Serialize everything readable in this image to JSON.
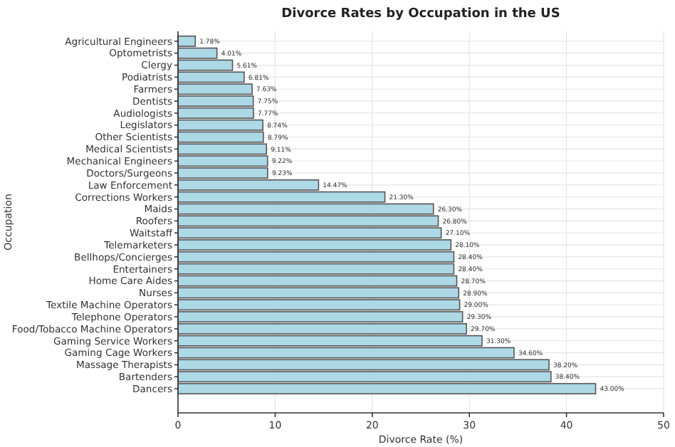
{
  "chart_data": {
    "type": "bar",
    "orientation": "horizontal",
    "title": "Divorce Rates by Occupation in the US",
    "xlabel": "Divorce Rate (%)",
    "ylabel": "Occupation",
    "categories": [
      "Agricultural Engineers",
      "Optometrists",
      "Clergy",
      "Podiatrists",
      "Farmers",
      "Dentists",
      "Audiologists",
      "Legislators",
      "Other Scientists",
      "Medical Scientists",
      "Mechanical Engineers",
      "Doctors/Surgeons",
      "Law Enforcement",
      "Corrections Workers",
      "Maids",
      "Roofers",
      "Waitstaff",
      "Telemarketers",
      "Bellhops/Concierges",
      "Entertainers",
      "Home Care Aides",
      "Nurses",
      "Textile Machine Operators",
      "Telephone Operators",
      "Food/Tobacco Machine Operators",
      "Gaming Service Workers",
      "Gaming Cage Workers",
      "Massage Therapists",
      "Bartenders",
      "Dancers"
    ],
    "values": [
      1.78,
      4.01,
      5.61,
      6.81,
      7.63,
      7.75,
      7.77,
      8.74,
      8.79,
      9.11,
      9.22,
      9.23,
      14.47,
      21.3,
      26.3,
      26.8,
      27.1,
      28.1,
      28.4,
      28.4,
      28.7,
      28.9,
      29.0,
      29.3,
      29.7,
      31.3,
      34.6,
      38.2,
      38.4,
      43.0
    ],
    "value_labels": [
      "1.78%",
      "4.01%",
      "5.61%",
      "6.81%",
      "7.63%",
      "7.75%",
      "7.77%",
      "8.74%",
      "8.79%",
      "9.11%",
      "9.22%",
      "9.23%",
      "14.47%",
      "21.30%",
      "26.30%",
      "26.80%",
      "27.10%",
      "28.10%",
      "28.40%",
      "28.40%",
      "28.70%",
      "28.90%",
      "29.00%",
      "29.30%",
      "29.70%",
      "31.30%",
      "34.60%",
      "38.20%",
      "38.40%",
      "43.00%"
    ],
    "color": "#add8e6",
    "xlim": [
      0,
      50
    ],
    "xticks": [
      0,
      10,
      20,
      30,
      40,
      50
    ],
    "grid": true
  }
}
